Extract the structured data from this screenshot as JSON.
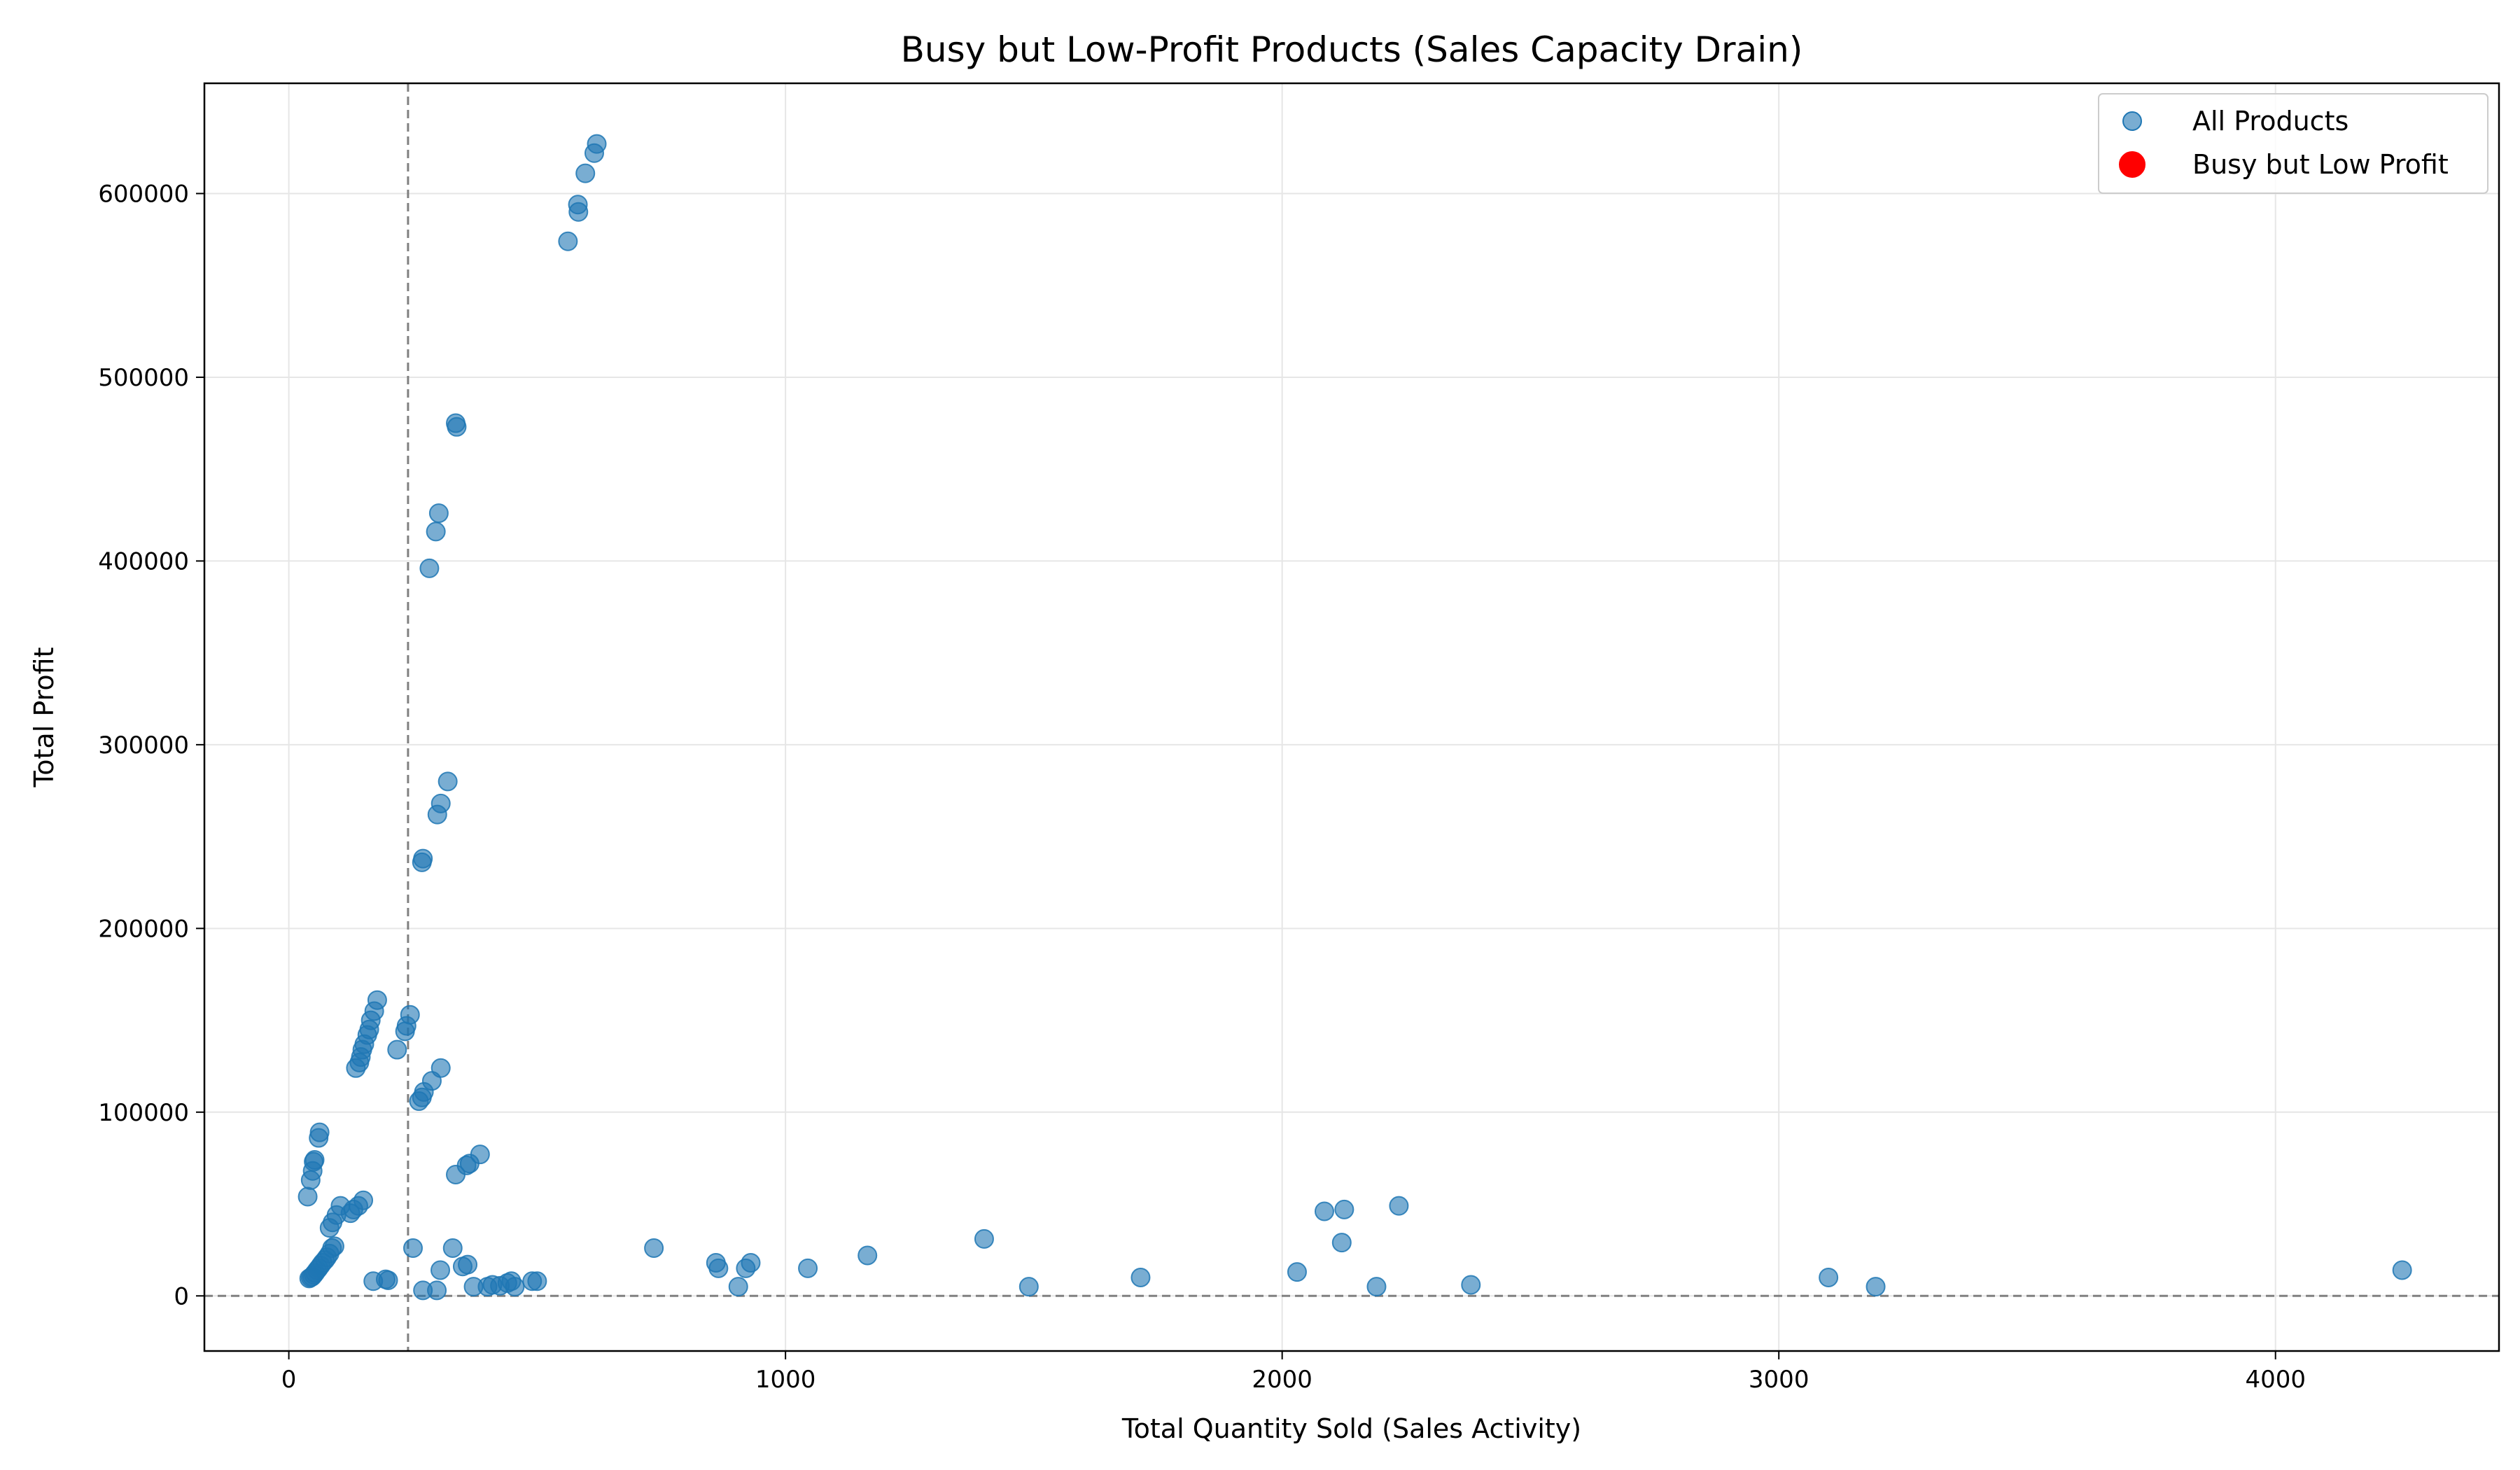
{
  "chart_data": {
    "type": "scatter",
    "title": "Busy but Low-Profit Products (Sales Capacity Drain)",
    "xlabel": "Total Quantity Sold (Sales Activity)",
    "ylabel": "Total Profit",
    "xlim": [
      -170,
      4450
    ],
    "ylim": [
      -30000,
      660000
    ],
    "xticks": [
      0,
      1000,
      2000,
      3000,
      4000
    ],
    "yticks": [
      0,
      100000,
      200000,
      300000,
      400000,
      500000,
      600000
    ],
    "xtick_labels": [
      "0",
      "1000",
      "2000",
      "3000",
      "4000"
    ],
    "ytick_labels": [
      "0",
      "100000",
      "200000",
      "300000",
      "400000",
      "500000",
      "600000"
    ],
    "grid": true,
    "reference_lines": {
      "vertical_x": 240,
      "horizontal_y": 0,
      "style": "dashed",
      "color": "#808080"
    },
    "legend": {
      "position": "top-right",
      "entries": [
        {
          "label": "All Products",
          "color": "#1f77b4"
        },
        {
          "label": "Busy but Low Profit",
          "color": "#ff0000"
        }
      ]
    },
    "series": [
      {
        "name": "All Products",
        "color": "#1f77b4",
        "points": [
          [
            620,
            627000
          ],
          [
            615,
            622000
          ],
          [
            597,
            611000
          ],
          [
            582,
            594000
          ],
          [
            583,
            590000
          ],
          [
            562,
            574000
          ],
          [
            336,
            475000
          ],
          [
            338,
            473000
          ],
          [
            302,
            426000
          ],
          [
            296,
            416000
          ],
          [
            283,
            396000
          ],
          [
            320,
            280000
          ],
          [
            306,
            268000
          ],
          [
            299,
            262000
          ],
          [
            270,
            238000
          ],
          [
            268,
            236000
          ],
          [
            178,
            161000
          ],
          [
            172,
            155000
          ],
          [
            165,
            150000
          ],
          [
            162,
            145000
          ],
          [
            158,
            142000
          ],
          [
            152,
            137000
          ],
          [
            148,
            134000
          ],
          [
            145,
            130000
          ],
          [
            142,
            127000
          ],
          [
            135,
            124000
          ],
          [
            244,
            153000
          ],
          [
            237,
            147000
          ],
          [
            234,
            144000
          ],
          [
            218,
            134000
          ],
          [
            306,
            124000
          ],
          [
            288,
            117000
          ],
          [
            272,
            111000
          ],
          [
            268,
            108000
          ],
          [
            262,
            106000
          ],
          [
            385,
            77000
          ],
          [
            364,
            72000
          ],
          [
            358,
            71000
          ],
          [
            336,
            66000
          ],
          [
            62,
            89000
          ],
          [
            60,
            86000
          ],
          [
            52,
            74000
          ],
          [
            50,
            73000
          ],
          [
            48,
            68000
          ],
          [
            44,
            63000
          ],
          [
            38,
            54000
          ],
          [
            150,
            52000
          ],
          [
            140,
            49000
          ],
          [
            130,
            47000
          ],
          [
            124,
            45000
          ],
          [
            104,
            49000
          ],
          [
            96,
            44000
          ],
          [
            88,
            40000
          ],
          [
            82,
            37000
          ],
          [
            92,
            27000
          ],
          [
            87,
            26000
          ],
          [
            82,
            23000
          ],
          [
            77,
            21000
          ],
          [
            73,
            19500
          ],
          [
            68,
            18000
          ],
          [
            64,
            16500
          ],
          [
            60,
            15000
          ],
          [
            57,
            14000
          ],
          [
            53,
            12500
          ],
          [
            50,
            11500
          ],
          [
            47,
            10500
          ],
          [
            44,
            10000
          ],
          [
            41,
            9500
          ],
          [
            250,
            26000
          ],
          [
            330,
            26000
          ],
          [
            360,
            17000
          ],
          [
            350,
            16000
          ],
          [
            305,
            14000
          ],
          [
            298,
            3000
          ],
          [
            270,
            3000
          ],
          [
            170,
            8000
          ],
          [
            195,
            9000
          ],
          [
            200,
            8500
          ],
          [
            372,
            5000
          ],
          [
            400,
            5000
          ],
          [
            410,
            6000
          ],
          [
            425,
            5500
          ],
          [
            440,
            7000
          ],
          [
            448,
            8000
          ],
          [
            490,
            8000
          ],
          [
            500,
            8000
          ],
          [
            455,
            5000
          ],
          [
            735,
            26000
          ],
          [
            860,
            18000
          ],
          [
            865,
            15000
          ],
          [
            920,
            15000
          ],
          [
            930,
            18000
          ],
          [
            905,
            5000
          ],
          [
            1045,
            15000
          ],
          [
            1165,
            22000
          ],
          [
            1400,
            31000
          ],
          [
            1490,
            5000
          ],
          [
            1715,
            10000
          ],
          [
            2030,
            13000
          ],
          [
            2085,
            46000
          ],
          [
            2125,
            47000
          ],
          [
            2120,
            29000
          ],
          [
            2235,
            49000
          ],
          [
            2190,
            5000
          ],
          [
            2380,
            6000
          ],
          [
            3100,
            10000
          ],
          [
            3195,
            5000
          ],
          [
            4255,
            14000
          ]
        ]
      },
      {
        "name": "Busy but Low Profit",
        "color": "#ff0000",
        "points": []
      }
    ]
  }
}
